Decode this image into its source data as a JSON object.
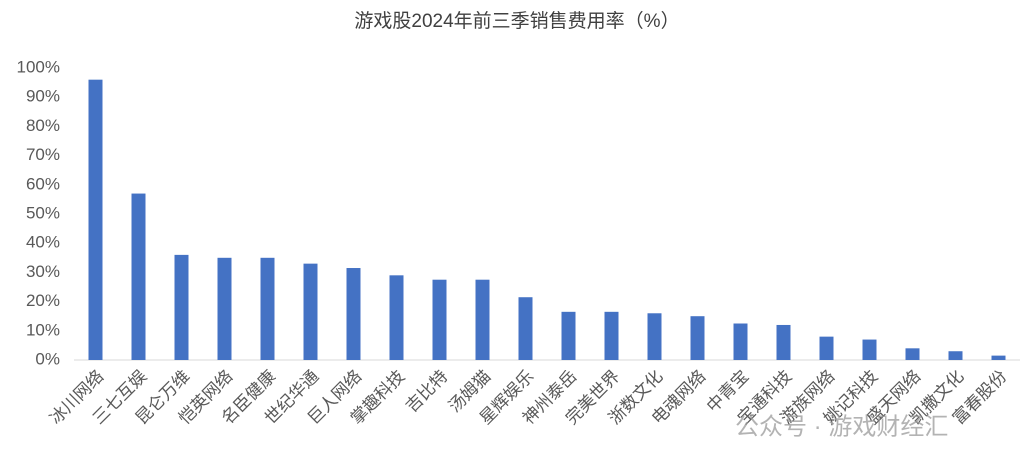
{
  "chart_data": {
    "type": "bar",
    "title": "游戏股2024年前三季销售费用率（%）",
    "categories": [
      "冰川网络",
      "三七互娱",
      "昆仑万维",
      "恺英网络",
      "名臣健康",
      "世纪华通",
      "巨人网络",
      "掌趣科技",
      "吉比特",
      "汤姆猫",
      "星辉娱乐",
      "神州泰岳",
      "完美世界",
      "浙数文化",
      "电魂网络",
      "中青宝",
      "宝通科技",
      "游族网络",
      "姚记科技",
      "盛天网络",
      "凯撒文化",
      "富春股份"
    ],
    "values": [
      96,
      57,
      36,
      35,
      35,
      33,
      31.5,
      29,
      27.5,
      27.5,
      21.5,
      16.5,
      16.5,
      16,
      15,
      12.5,
      12,
      8,
      7,
      4,
      3,
      1.5
    ],
    "color": "#4472c4",
    "ylim": [
      0,
      100
    ],
    "yticks": [
      {
        "value": 0,
        "label": "0%"
      },
      {
        "value": 10,
        "label": "10%"
      },
      {
        "value": 20,
        "label": "20%"
      },
      {
        "value": 30,
        "label": "30%"
      },
      {
        "value": 40,
        "label": "40%"
      },
      {
        "value": 50,
        "label": "50%"
      },
      {
        "value": 60,
        "label": "60%"
      },
      {
        "value": 70,
        "label": "70%"
      },
      {
        "value": 80,
        "label": "80%"
      },
      {
        "value": 90,
        "label": "90%"
      },
      {
        "value": 100,
        "label": "100%"
      }
    ],
    "grid": false
  },
  "watermark": "公众号 · 游戏财经汇"
}
